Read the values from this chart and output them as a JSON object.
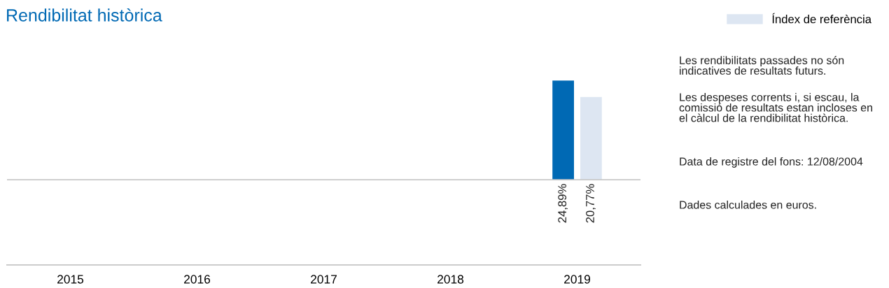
{
  "chart_data": {
    "type": "bar",
    "title": "Rendibilitat històrica",
    "categories": [
      "2015",
      "2016",
      "2017",
      "2018",
      "2019"
    ],
    "series": [
      {
        "color": "#0069b4",
        "values": [
          null,
          null,
          null,
          null,
          24.89
        ],
        "value_labels": [
          null,
          null,
          null,
          null,
          "24,89%"
        ]
      },
      {
        "name": "Índex de referència",
        "color": "#dde6f2",
        "values": [
          null,
          null,
          null,
          null,
          20.77
        ],
        "value_labels": [
          null,
          null,
          null,
          null,
          "20,77%"
        ]
      }
    ],
    "ref_lines": [
      {
        "axis": "y",
        "value": 0,
        "color": "#c8c8c8"
      }
    ],
    "legend": "top",
    "annotations": [
      "Les rendibilitats passades no són indicatives de resultats futurs.",
      "Les despeses corrents i, si escau, la comissió de resultats estan incloses en el càlcul de la rendibilitat històrica.",
      "Data de registre del fons: 12/08/2004",
      "Dades calculades en euros."
    ]
  }
}
